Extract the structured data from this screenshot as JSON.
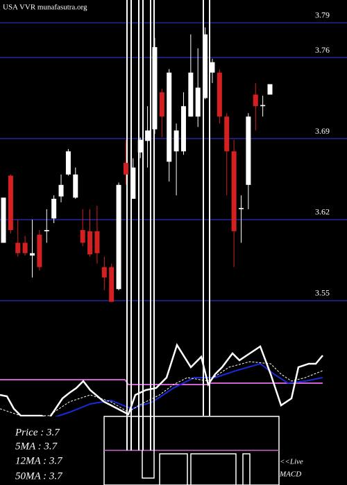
{
  "chart_data": {
    "type": "candlestick",
    "title": "USA VVR munafasutra.org",
    "open": [
      3.6,
      3.658,
      3.6,
      3.6,
      3.589,
      3.607,
      3.61,
      3.621,
      3.64,
      3.659,
      3.639,
      3.611,
      3.61,
      3.61,
      3.579,
      3.579,
      3.56,
      3.669,
      3.638,
      3.678,
      3.688,
      3.698,
      3.73,
      3.67,
      3.679,
      3.679,
      3.709,
      3.709,
      3.725,
      3.747,
      3.747,
      3.709,
      3.679,
      3.629,
      3.65,
      3.728,
      3.718,
      3.728
    ],
    "high": [
      3.639,
      3.659,
      3.62,
      3.606,
      3.62,
      3.611,
      3.629,
      3.641,
      3.659,
      3.681,
      3.665,
      3.629,
      3.629,
      3.632,
      3.588,
      3.582,
      3.652,
      3.689,
      3.673,
      3.691,
      3.718,
      3.777,
      3.733,
      3.75,
      3.703,
      3.73,
      3.78,
      3.768,
      3.786,
      3.759,
      3.75,
      3.712,
      3.689,
      3.641,
      3.712,
      3.738,
      3.727,
      3.737
    ],
    "low": [
      3.6,
      3.608,
      3.588,
      3.589,
      3.57,
      3.576,
      3.6,
      3.617,
      3.635,
      3.658,
      3.638,
      3.597,
      3.588,
      3.582,
      3.559,
      3.549,
      3.559,
      3.65,
      3.638,
      3.673,
      3.665,
      3.694,
      3.691,
      3.653,
      3.641,
      3.676,
      3.709,
      3.7,
      3.724,
      3.738,
      3.703,
      3.641,
      3.579,
      3.6,
      3.629,
      3.697,
      3.709,
      3.728
    ],
    "close": [
      3.639,
      3.611,
      3.591,
      3.591,
      3.591,
      3.579,
      3.611,
      3.638,
      3.65,
      3.679,
      3.659,
      3.6,
      3.59,
      3.591,
      3.57,
      3.549,
      3.65,
      3.659,
      3.665,
      3.689,
      3.697,
      3.769,
      3.709,
      3.747,
      3.697,
      3.718,
      3.747,
      3.734,
      3.78,
      3.756,
      3.709,
      3.679,
      3.61,
      3.63,
      3.709,
      3.718,
      3.719,
      3.737
    ],
    "up_color": "#ffffff",
    "down_color": "#d42020",
    "grid_color": "#1c1c7a",
    "ylim": [
      3.5404,
      3.8097
    ],
    "yticks": [
      3.55,
      3.62,
      3.69,
      3.76,
      3.79
    ],
    "grid": true,
    "info_lines": [
      "Price : 3.7",
      "5MA : 3.7",
      "12MA : 3.7",
      "50MA : 3.7"
    ],
    "macd_label": [
      "<<Live",
      "MACD"
    ]
  }
}
